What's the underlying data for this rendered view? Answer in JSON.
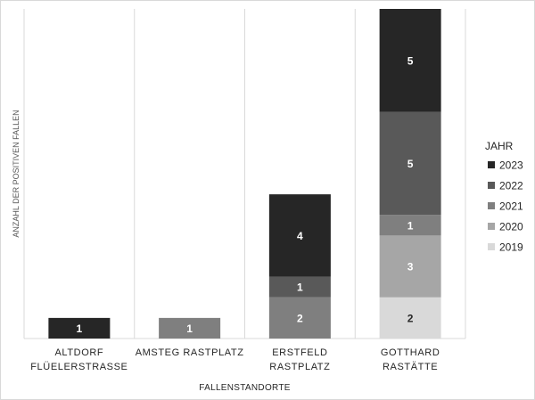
{
  "chart_data": {
    "type": "bar",
    "stacked": true,
    "orientation": "vertical",
    "title": "",
    "xlabel": "FALLENSTANDORTE",
    "ylabel": "ANZAHL DER POSITIVEN FALLEN",
    "categories": [
      [
        "ALTDORF",
        "FLÜELERSTRASSE"
      ],
      [
        "AMSTEG RASTPLATZ"
      ],
      [
        "ERSTFELD",
        "RASTPLATZ"
      ],
      [
        "GOTTHARD",
        "RASTÄTTE"
      ]
    ],
    "series": [
      {
        "name": "2019",
        "color": "#d9d9d9",
        "values": [
          0,
          0,
          0,
          2
        ]
      },
      {
        "name": "2020",
        "color": "#a6a6a6",
        "values": [
          0,
          0,
          0,
          3
        ]
      },
      {
        "name": "2021",
        "color": "#7f7f7f",
        "values": [
          0,
          1,
          2,
          1
        ]
      },
      {
        "name": "2022",
        "color": "#595959",
        "values": [
          0,
          0,
          1,
          5
        ]
      },
      {
        "name": "2023",
        "color": "#262626",
        "values": [
          1,
          0,
          4,
          5
        ]
      }
    ],
    "ylim": [
      0,
      16
    ],
    "grid": "vertical category separators",
    "legend": {
      "title": "JAHR",
      "position": "right",
      "order": [
        "2023",
        "2022",
        "2021",
        "2020",
        "2019"
      ]
    }
  }
}
